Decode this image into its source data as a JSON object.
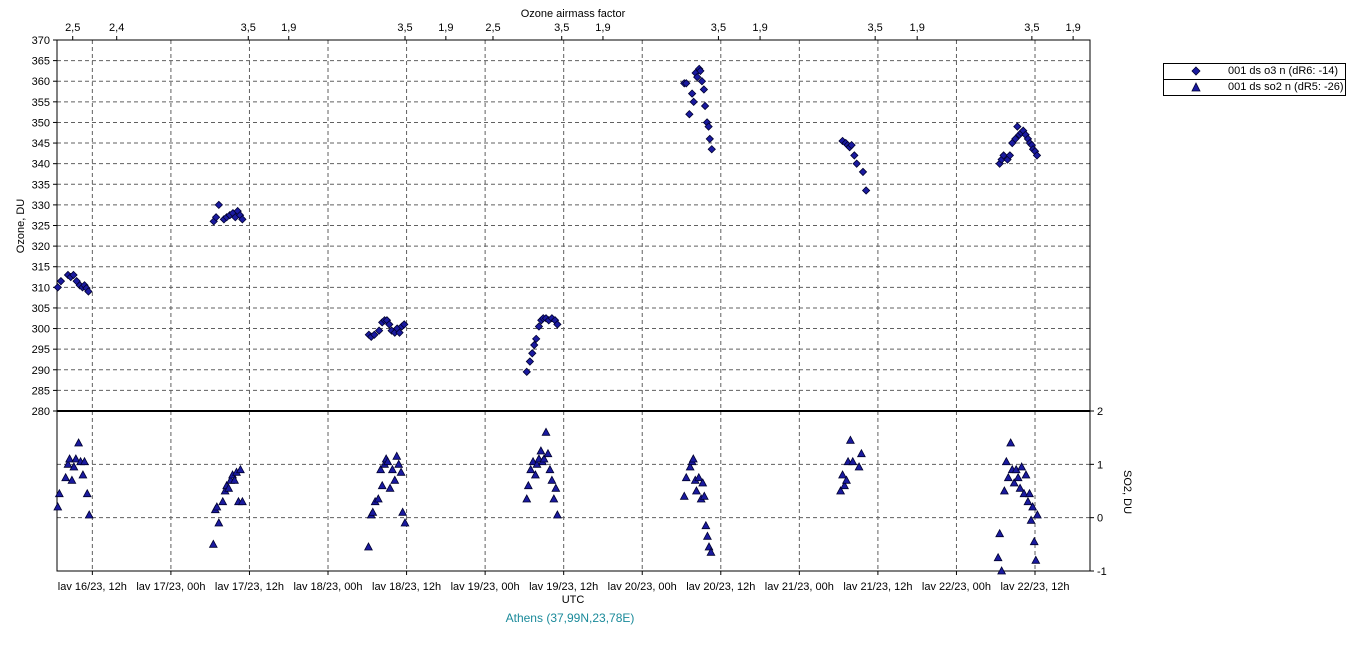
{
  "chart_data": {
    "type": "scatter",
    "title": "",
    "top_axis": {
      "label": "Ozone airmass factor",
      "ticks": [
        {
          "t": -0.5,
          "label": "2,5"
        },
        {
          "t": 0.62,
          "label": "2,4"
        },
        {
          "t": 3.97,
          "label": "3,5"
        },
        {
          "t": 5.0,
          "label": "1,9"
        },
        {
          "t": 7.96,
          "label": "3,5"
        },
        {
          "t": 9.0,
          "label": "1,9"
        },
        {
          "t": 10.2,
          "label": "2,5"
        },
        {
          "t": 11.95,
          "label": "3,5"
        },
        {
          "t": 13.0,
          "label": "1,9"
        },
        {
          "t": 15.94,
          "label": "3,5"
        },
        {
          "t": 17.0,
          "label": "1,9"
        },
        {
          "t": 19.93,
          "label": "3,5"
        },
        {
          "t": 21.0,
          "label": "1,9"
        },
        {
          "t": 23.92,
          "label": "3,5"
        },
        {
          "t": 24.97,
          "label": "1,9"
        }
      ]
    },
    "x_axis": {
      "label": "UTC",
      "range_hours": [
        -0.9,
        25.4
      ],
      "ticks": [
        {
          "t": 0,
          "label": "lav 16/23, 12h"
        },
        {
          "t": 2,
          "label": "lav 17/23, 00h"
        },
        {
          "t": 4,
          "label": "lav 17/23, 12h"
        },
        {
          "t": 6,
          "label": "lav 18/23, 00h"
        },
        {
          "t": 8,
          "label": "lav 18/23, 12h"
        },
        {
          "t": 10,
          "label": "lav 19/23, 00h"
        },
        {
          "t": 12,
          "label": "lav 19/23, 12h"
        },
        {
          "t": 14,
          "label": "lav 20/23, 00h"
        },
        {
          "t": 16,
          "label": "lav 20/23, 12h"
        },
        {
          "t": 18,
          "label": "lav 21/23, 00h"
        },
        {
          "t": 20,
          "label": "lav 21/23, 12h"
        },
        {
          "t": 22,
          "label": "lav 22/23, 00h"
        },
        {
          "t": 24,
          "label": "lav 22/23, 12h"
        }
      ]
    },
    "ozone_axis": {
      "label": "Ozone, DU",
      "ylim": [
        280,
        370
      ],
      "ticks": [
        "280",
        "285",
        "290",
        "295",
        "300",
        "305",
        "310",
        "315",
        "320",
        "325",
        "330",
        "335",
        "340",
        "345",
        "350",
        "355",
        "360",
        "365",
        "370"
      ]
    },
    "so2_axis": {
      "label": "SO2, DU",
      "ylim": [
        -1,
        2
      ],
      "ticks": [
        "-1",
        "0",
        "1",
        "2"
      ]
    },
    "grid": true,
    "legend_position": "top-right, outside plot",
    "series": [
      {
        "name": "001 ds o3  n (dR6: -14)",
        "marker": "diamond",
        "color": "#1a1aa0",
        "points": [
          [
            -0.88,
            310
          ],
          [
            -0.8,
            311.5
          ],
          [
            -0.62,
            313
          ],
          [
            -0.55,
            312.5
          ],
          [
            -0.48,
            313
          ],
          [
            -0.4,
            311.5
          ],
          [
            -0.32,
            310.5
          ],
          [
            -0.25,
            310
          ],
          [
            -0.2,
            310.5
          ],
          [
            -0.15,
            309.8
          ],
          [
            -0.1,
            309
          ],
          [
            3.09,
            326
          ],
          [
            3.15,
            327
          ],
          [
            3.22,
            330
          ],
          [
            3.35,
            326.5
          ],
          [
            3.42,
            327
          ],
          [
            3.5,
            327.5
          ],
          [
            3.58,
            328
          ],
          [
            3.64,
            327
          ],
          [
            3.7,
            328.5
          ],
          [
            3.76,
            327.5
          ],
          [
            3.82,
            326.5
          ],
          [
            7.04,
            298.5
          ],
          [
            7.1,
            298
          ],
          [
            7.18,
            298.5
          ],
          [
            7.3,
            299.5
          ],
          [
            7.38,
            301.5
          ],
          [
            7.44,
            302
          ],
          [
            7.5,
            302
          ],
          [
            7.56,
            301
          ],
          [
            7.62,
            299.5
          ],
          [
            7.7,
            299
          ],
          [
            7.76,
            300
          ],
          [
            7.82,
            299
          ],
          [
            7.88,
            300.5
          ],
          [
            7.94,
            301
          ],
          [
            11.06,
            289.5
          ],
          [
            11.14,
            292
          ],
          [
            11.2,
            294
          ],
          [
            11.25,
            296
          ],
          [
            11.3,
            297.5
          ],
          [
            11.37,
            300.5
          ],
          [
            11.43,
            302
          ],
          [
            11.48,
            302.5
          ],
          [
            11.55,
            302.5
          ],
          [
            11.62,
            302
          ],
          [
            11.7,
            302.5
          ],
          [
            11.78,
            302
          ],
          [
            11.84,
            301
          ],
          [
            15.07,
            359.5
          ],
          [
            15.12,
            359.5
          ],
          [
            15.2,
            352
          ],
          [
            15.27,
            357
          ],
          [
            15.31,
            355
          ],
          [
            15.36,
            362
          ],
          [
            15.4,
            361
          ],
          [
            15.45,
            363
          ],
          [
            15.48,
            362.5
          ],
          [
            15.52,
            360
          ],
          [
            15.57,
            358
          ],
          [
            15.6,
            354
          ],
          [
            15.65,
            350
          ],
          [
            15.69,
            349
          ],
          [
            15.72,
            346
          ],
          [
            15.77,
            343.5
          ],
          [
            19.1,
            345.5
          ],
          [
            19.18,
            345
          ],
          [
            19.23,
            344.5
          ],
          [
            19.28,
            344
          ],
          [
            19.33,
            344.5
          ],
          [
            19.4,
            342
          ],
          [
            19.46,
            340
          ],
          [
            19.62,
            338
          ],
          [
            19.7,
            333.5
          ],
          [
            23.1,
            340
          ],
          [
            23.15,
            341
          ],
          [
            23.2,
            342
          ],
          [
            23.3,
            341
          ],
          [
            23.36,
            342
          ],
          [
            23.42,
            345
          ],
          [
            23.5,
            346
          ],
          [
            23.55,
            349
          ],
          [
            23.6,
            347
          ],
          [
            23.65,
            347.5
          ],
          [
            23.7,
            348
          ],
          [
            23.76,
            347
          ],
          [
            23.82,
            346
          ],
          [
            23.87,
            345
          ],
          [
            23.92,
            344.5
          ],
          [
            23.95,
            343.5
          ],
          [
            24.0,
            343
          ],
          [
            24.05,
            342
          ]
        ]
      },
      {
        "name": "001 ds so2 n (dR5: -26)",
        "marker": "triangle",
        "color": "#1a1aa0",
        "points": [
          [
            -0.88,
            0.2
          ],
          [
            -0.84,
            0.45
          ],
          [
            -0.68,
            0.75
          ],
          [
            -0.62,
            1.0
          ],
          [
            -0.58,
            1.1
          ],
          [
            -0.52,
            0.7
          ],
          [
            -0.47,
            0.95
          ],
          [
            -0.42,
            1.1
          ],
          [
            -0.35,
            1.4
          ],
          [
            -0.3,
            1.05
          ],
          [
            -0.24,
            0.8
          ],
          [
            -0.2,
            1.05
          ],
          [
            -0.13,
            0.45
          ],
          [
            -0.08,
            0.05
          ],
          [
            3.08,
            -0.5
          ],
          [
            3.13,
            0.15
          ],
          [
            3.17,
            0.2
          ],
          [
            3.22,
            -0.1
          ],
          [
            3.32,
            0.3
          ],
          [
            3.38,
            0.5
          ],
          [
            3.42,
            0.6
          ],
          [
            3.47,
            0.55
          ],
          [
            3.52,
            0.7
          ],
          [
            3.57,
            0.8
          ],
          [
            3.62,
            0.7
          ],
          [
            3.67,
            0.85
          ],
          [
            3.72,
            0.3
          ],
          [
            3.77,
            0.9
          ],
          [
            3.82,
            0.3
          ],
          [
            7.03,
            -0.55
          ],
          [
            7.1,
            0.05
          ],
          [
            7.14,
            0.1
          ],
          [
            7.2,
            0.3
          ],
          [
            7.28,
            0.35
          ],
          [
            7.34,
            0.9
          ],
          [
            7.38,
            0.6
          ],
          [
            7.44,
            1.0
          ],
          [
            7.48,
            1.1
          ],
          [
            7.52,
            1.05
          ],
          [
            7.58,
            0.55
          ],
          [
            7.64,
            0.9
          ],
          [
            7.7,
            0.7
          ],
          [
            7.75,
            1.15
          ],
          [
            7.8,
            1.0
          ],
          [
            7.86,
            0.85
          ],
          [
            7.9,
            0.1
          ],
          [
            7.96,
            -0.1
          ],
          [
            11.06,
            0.35
          ],
          [
            11.1,
            0.6
          ],
          [
            11.16,
            0.9
          ],
          [
            11.22,
            1.05
          ],
          [
            11.28,
            0.8
          ],
          [
            11.32,
            1.0
          ],
          [
            11.37,
            1.1
          ],
          [
            11.42,
            1.25
          ],
          [
            11.46,
            1.05
          ],
          [
            11.5,
            1.1
          ],
          [
            11.55,
            1.6
          ],
          [
            11.6,
            1.2
          ],
          [
            11.65,
            0.9
          ],
          [
            11.7,
            0.7
          ],
          [
            11.75,
            0.35
          ],
          [
            11.8,
            0.55
          ],
          [
            11.84,
            0.05
          ],
          [
            15.07,
            0.4
          ],
          [
            15.12,
            0.75
          ],
          [
            15.22,
            0.95
          ],
          [
            15.27,
            1.05
          ],
          [
            15.3,
            1.1
          ],
          [
            15.35,
            0.7
          ],
          [
            15.38,
            0.5
          ],
          [
            15.44,
            0.75
          ],
          [
            15.5,
            0.35
          ],
          [
            15.54,
            0.65
          ],
          [
            15.58,
            0.4
          ],
          [
            15.62,
            -0.15
          ],
          [
            15.66,
            -0.35
          ],
          [
            15.7,
            -0.55
          ],
          [
            15.75,
            -0.65
          ],
          [
            19.05,
            0.5
          ],
          [
            19.1,
            0.8
          ],
          [
            19.15,
            0.6
          ],
          [
            19.2,
            0.7
          ],
          [
            19.24,
            1.05
          ],
          [
            19.3,
            1.45
          ],
          [
            19.36,
            1.05
          ],
          [
            19.52,
            0.95
          ],
          [
            19.58,
            1.2
          ],
          [
            23.06,
            -0.75
          ],
          [
            23.1,
            -0.3
          ],
          [
            23.15,
            -1.0
          ],
          [
            23.22,
            0.5
          ],
          [
            23.27,
            1.05
          ],
          [
            23.32,
            0.75
          ],
          [
            23.38,
            1.4
          ],
          [
            23.42,
            0.9
          ],
          [
            23.47,
            0.65
          ],
          [
            23.52,
            0.9
          ],
          [
            23.57,
            0.75
          ],
          [
            23.62,
            0.55
          ],
          [
            23.66,
            0.95
          ],
          [
            23.72,
            0.45
          ],
          [
            23.77,
            0.8
          ],
          [
            23.82,
            0.3
          ],
          [
            23.86,
            0.45
          ],
          [
            23.9,
            -0.05
          ],
          [
            23.94,
            0.2
          ],
          [
            23.98,
            -0.45
          ],
          [
            24.02,
            -0.8
          ],
          [
            24.06,
            0.05
          ]
        ]
      }
    ]
  },
  "footer": {
    "station": "Athens (37,99N,23,78E)"
  }
}
